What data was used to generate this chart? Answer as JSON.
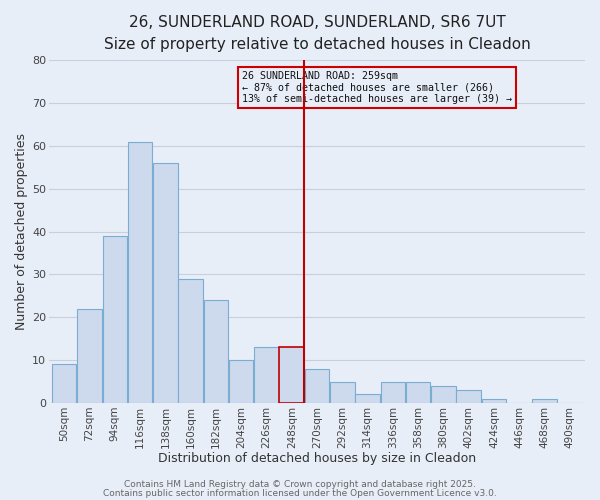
{
  "title": "26, SUNDERLAND ROAD, SUNDERLAND, SR6 7UT",
  "subtitle": "Size of property relative to detached houses in Cleadon",
  "xlabel": "Distribution of detached houses by size in Cleadon",
  "ylabel": "Number of detached properties",
  "bar_labels": [
    "50sqm",
    "72sqm",
    "94sqm",
    "116sqm",
    "138sqm",
    "160sqm",
    "182sqm",
    "204sqm",
    "226sqm",
    "248sqm",
    "270sqm",
    "292sqm",
    "314sqm",
    "336sqm",
    "358sqm",
    "380sqm",
    "402sqm",
    "424sqm",
    "446sqm",
    "468sqm",
    "490sqm"
  ],
  "bar_heights": [
    9,
    22,
    39,
    61,
    56,
    29,
    24,
    10,
    13,
    13,
    8,
    5,
    2,
    5,
    5,
    4,
    3,
    1,
    0,
    1,
    0
  ],
  "bar_color": "#cdd9ec",
  "bar_edge_color": "#7aadd4",
  "highlight_bar_index": 9,
  "highlight_bar_edge_color": "#c00000",
  "vline_index": 9.5,
  "vline_color": "#c00000",
  "ylim": [
    0,
    80
  ],
  "yticks": [
    0,
    10,
    20,
    30,
    40,
    50,
    60,
    70,
    80
  ],
  "grid_color": "#c8d0de",
  "background_color": "#e8eef8",
  "box_text_line1": "26 SUNDERLAND ROAD: 259sqm",
  "box_text_line2": "← 87% of detached houses are smaller (266)",
  "box_text_line3": "13% of semi-detached houses are larger (39) →",
  "box_edge_color": "#cc0000",
  "footer_line1": "Contains HM Land Registry data © Crown copyright and database right 2025.",
  "footer_line2": "Contains public sector information licensed under the Open Government Licence v3.0.",
  "title_fontsize": 11,
  "subtitle_fontsize": 9.5,
  "tick_fontsize": 7.5,
  "label_fontsize": 9,
  "footer_fontsize": 6.5
}
